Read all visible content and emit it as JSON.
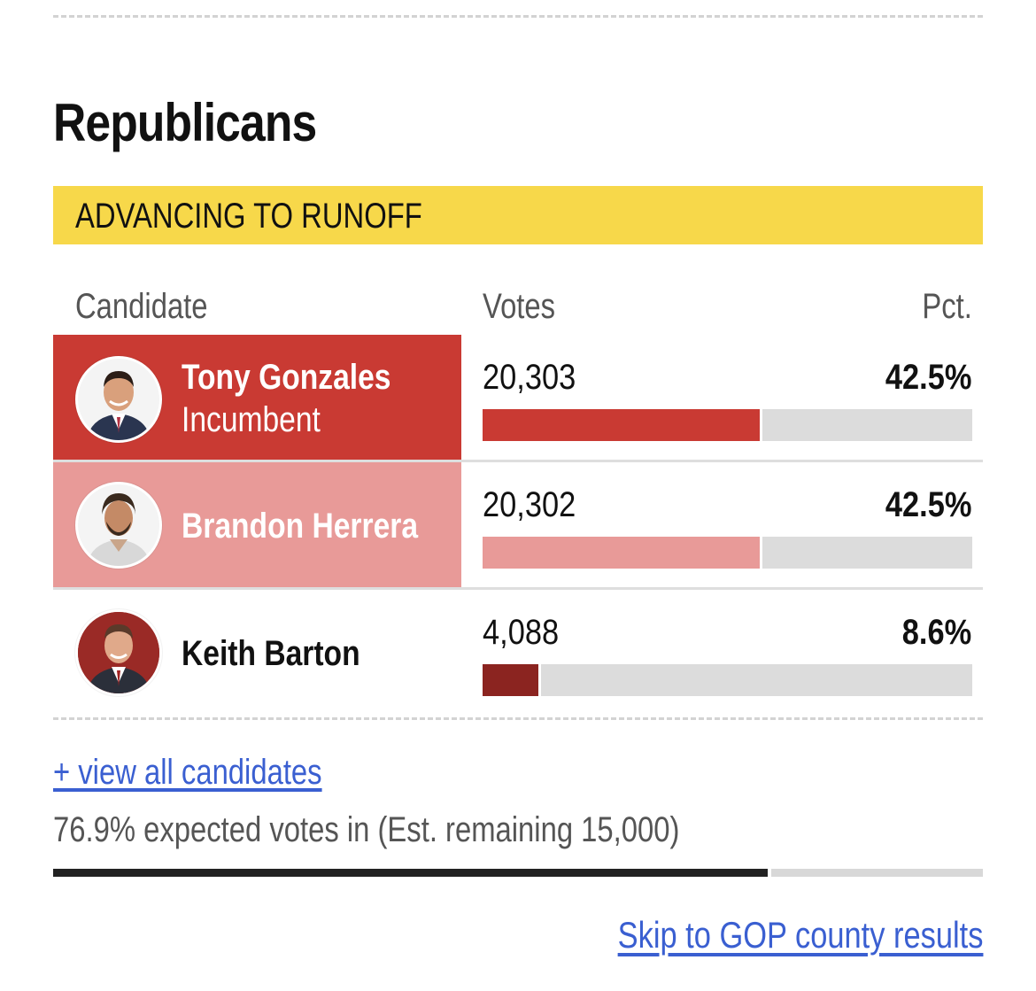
{
  "party": {
    "title": "Republicans"
  },
  "banner": {
    "label": "ADVANCING TO RUNOFF",
    "color": "#f7d84a"
  },
  "columns": {
    "candidate": "Candidate",
    "votes": "Votes",
    "pct": "Pct."
  },
  "candidates": [
    {
      "name": "Tony Gonzales",
      "subtitle": "Incumbent",
      "votes": "20,303",
      "pct": "42.5%",
      "share": 42.5,
      "bar_color": "#c93a33",
      "avatar_bg": "#ffffff"
    },
    {
      "name": "Brandon Herrera",
      "subtitle": "",
      "votes": "20,302",
      "pct": "42.5%",
      "share": 42.5,
      "bar_color": "#e89a98",
      "avatar_bg": "#ffffff"
    },
    {
      "name": "Keith Barton",
      "subtitle": "",
      "votes": "4,088",
      "pct": "8.6%",
      "share": 8.6,
      "bar_color": "#8b2420",
      "avatar_bg": "#9a2a26"
    }
  ],
  "footer": {
    "view_all": "+ view all candidates",
    "expected": "76.9% expected votes in (Est. remaining 15,000)",
    "expected_share": 76.9,
    "skip_link": "Skip to GOP county results",
    "link_color": "#3a5fd1"
  }
}
